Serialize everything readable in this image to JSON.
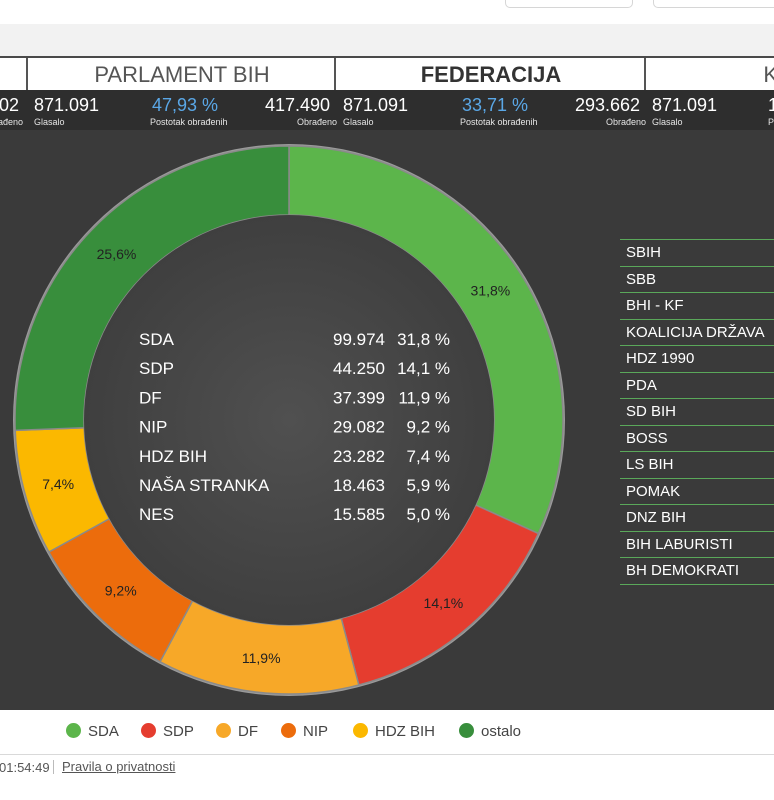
{
  "tabs": [
    {
      "label": "PARLAMENT BIH",
      "active": false
    },
    {
      "label": "FEDERACIJA",
      "active": true
    },
    {
      "label": "K",
      "active": false
    }
  ],
  "stats": {
    "partial_left_value": "02",
    "partial_left_label": "ađeno",
    "parlament": {
      "glasalo": "871.091",
      "glasalo_label": "Glasalo",
      "postotak": "47,93 %",
      "postotak_label": "Postotak obrađenih",
      "obradjeno": "417.490",
      "obradjeno_label": "Obrađeno"
    },
    "federacija": {
      "glasalo": "871.091",
      "glasalo_label": "Glasalo",
      "postotak": "33,71 %",
      "postotak_label": "Postotak obrađenih",
      "obradjeno": "293.662",
      "obradjeno_label": "Obrađeno"
    },
    "k": {
      "glasalo": "871.091",
      "glasalo_label": "Glasalo",
      "postotak_partial": "1",
      "postotak_label_partial": "P"
    }
  },
  "chart_data": {
    "type": "pie",
    "variant": "donut",
    "slices": [
      {
        "name": "SDA",
        "percent": 31.8,
        "label": "31,8%",
        "color": "#5cb54b"
      },
      {
        "name": "SDP",
        "percent": 14.1,
        "label": "14,1%",
        "color": "#e53d2f"
      },
      {
        "name": "DF",
        "percent": 11.9,
        "label": "11,9%",
        "color": "#f7a828"
      },
      {
        "name": "NIP",
        "percent": 9.2,
        "label": "9,2%",
        "color": "#ec6c0c"
      },
      {
        "name": "HDZ BIH",
        "percent": 7.4,
        "label": "7,4%",
        "color": "#fbb800"
      },
      {
        "name": "ostalo",
        "percent": 25.6,
        "label": "25,6%",
        "color": "#388e3c"
      }
    ],
    "center_table": [
      {
        "party": "SDA",
        "votes": "99.974",
        "percent": "31,8 %"
      },
      {
        "party": "SDP",
        "votes": "44.250",
        "percent": "14,1 %"
      },
      {
        "party": "DF",
        "votes": "37.399",
        "percent": "11,9 %"
      },
      {
        "party": "NIP",
        "votes": "29.082",
        "percent": "9,2 %"
      },
      {
        "party": "HDZ BIH",
        "votes": "23.282",
        "percent": "7,4 %"
      },
      {
        "party": "NAŠA STRANKA",
        "votes": "18.463",
        "percent": "5,9 %"
      },
      {
        "party": "NES",
        "votes": "15.585",
        "percent": "5,0 %"
      }
    ],
    "center_color": "#4a4a4a",
    "legend": [
      "SDA",
      "SDP",
      "DF",
      "NIP",
      "HDZ BIH",
      "ostalo"
    ]
  },
  "other_parties": [
    "SBIH",
    "SBB",
    "BHI - KF",
    "KOALICIJA DRŽAVA",
    "HDZ 1990",
    "PDA",
    "SD BIH",
    "BOSS",
    "LS BIH",
    "POMAK",
    "DNZ BIH",
    "BIH LABURISTI",
    "BH DEMOKRATI"
  ],
  "footer": {
    "time": "01:54:49",
    "privacy": "Pravila o privatnosti"
  }
}
